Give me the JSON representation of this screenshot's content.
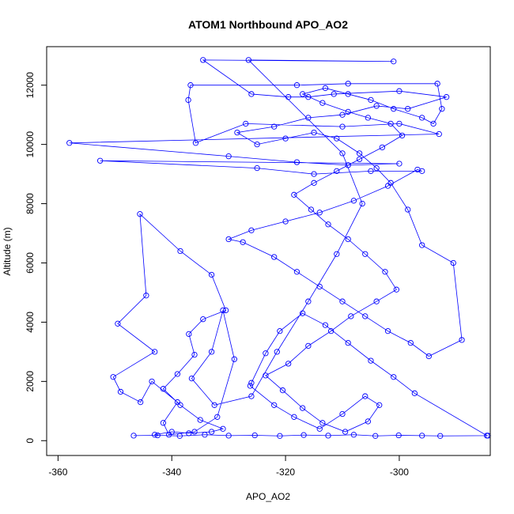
{
  "chart_data": {
    "type": "line",
    "title": "ATOM1 Northbound APO_AO2",
    "xlabel": "APO_AO2",
    "ylabel": "Altitude (m)",
    "xlim": [
      -362,
      -284
    ],
    "ylim": [
      -500,
      13300
    ],
    "xticks": [
      -360,
      -340,
      -320,
      -300
    ],
    "yticks": [
      0,
      2000,
      4000,
      6000,
      8000,
      10000,
      12000
    ],
    "grid": false,
    "marker": "open-circle",
    "series_color": "#0000ff",
    "series": [
      {
        "points": [
          [
            -346.7,
            170
          ],
          [
            -342.5,
            180
          ],
          [
            -338.6,
            160
          ],
          [
            -334.2,
            200
          ],
          [
            -330.0,
            170
          ],
          [
            -325.4,
            180
          ],
          [
            -321.0,
            160
          ],
          [
            -316.8,
            190
          ],
          [
            -312.5,
            170
          ],
          [
            -308.0,
            200
          ],
          [
            -304.2,
            160
          ],
          [
            -300.1,
            180
          ],
          [
            -296.0,
            170
          ],
          [
            -292.8,
            160
          ],
          [
            -284.4,
            170
          ],
          [
            -284.6,
            170
          ],
          [
            -297.3,
            1600
          ],
          [
            -301.0,
            2150
          ],
          [
            -305.0,
            2700
          ],
          [
            -309.0,
            3300
          ],
          [
            -313.0,
            3900
          ],
          [
            -317.0,
            4300
          ],
          [
            -321.0,
            3700
          ],
          [
            -323.5,
            2950
          ],
          [
            -326.0,
            1950
          ],
          [
            -326.2,
            1850
          ],
          [
            -322.0,
            1200
          ],
          [
            -318.5,
            800
          ],
          [
            -314.0,
            400
          ],
          [
            -310.0,
            900
          ],
          [
            -306.0,
            1500
          ],
          [
            -303.5,
            1200
          ],
          [
            -305.5,
            650
          ],
          [
            -309.5,
            300
          ],
          [
            -313.5,
            600
          ],
          [
            -317.0,
            1100
          ],
          [
            -320.5,
            1700
          ],
          [
            -323.5,
            2200
          ],
          [
            -319.5,
            2600
          ],
          [
            -316.0,
            3200
          ],
          [
            -312.0,
            3700
          ],
          [
            -308.5,
            4200
          ],
          [
            -304.0,
            4700
          ],
          [
            -300.5,
            5100
          ],
          [
            -302.5,
            5700
          ],
          [
            -306.0,
            6300
          ],
          [
            -309.0,
            6800
          ],
          [
            -312.5,
            7300
          ],
          [
            -315.5,
            7800
          ],
          [
            -318.5,
            8300
          ],
          [
            -315.0,
            8700
          ],
          [
            -311.0,
            9100
          ],
          [
            -307.0,
            9500
          ],
          [
            -303.0,
            9900
          ],
          [
            -299.5,
            10300
          ],
          [
            -301.5,
            10700
          ],
          [
            -305.5,
            10900
          ],
          [
            -309.0,
            11100
          ],
          [
            -313.5,
            11400
          ],
          [
            -317.0,
            11700
          ],
          [
            -313.0,
            11900
          ],
          [
            -309.0,
            11700
          ],
          [
            -305.0,
            11500
          ],
          [
            -301.0,
            11200
          ],
          [
            -296.0,
            10900
          ],
          [
            -294.0,
            10700
          ],
          [
            -292.5,
            11200
          ],
          [
            -293.3,
            12050
          ],
          [
            -309.0,
            12050
          ],
          [
            -318.0,
            12000
          ],
          [
            -336.7,
            12000
          ],
          [
            -337.1,
            11500
          ],
          [
            -335.8,
            10050
          ],
          [
            -327.0,
            10700
          ],
          [
            -310.0,
            10600
          ],
          [
            -300.0,
            10700
          ],
          [
            -293.0,
            10350
          ],
          [
            -358.0,
            10050
          ],
          [
            -330.0,
            9600
          ],
          [
            -318.0,
            9400
          ],
          [
            -309.0,
            9300
          ],
          [
            -300.0,
            9350
          ],
          [
            -352.6,
            9450
          ],
          [
            -325.0,
            9200
          ],
          [
            -315.0,
            9000
          ],
          [
            -305.0,
            9100
          ],
          [
            -296.0,
            9100
          ],
          [
            -296.8,
            9150
          ],
          [
            -302.0,
            8600
          ],
          [
            -308.0,
            8100
          ],
          [
            -314.0,
            7700
          ],
          [
            -320.0,
            7400
          ],
          [
            -326.0,
            7100
          ],
          [
            -330.0,
            6800
          ],
          [
            -327.5,
            6700
          ],
          [
            -322.0,
            6200
          ],
          [
            -318.0,
            5700
          ],
          [
            -314.0,
            5200
          ],
          [
            -310.0,
            4700
          ],
          [
            -306.0,
            4200
          ],
          [
            -302.0,
            3700
          ],
          [
            -298.0,
            3300
          ],
          [
            -294.8,
            2850
          ],
          [
            -289.0,
            3400
          ],
          [
            -290.5,
            6000
          ],
          [
            -296.0,
            6600
          ],
          [
            -298.5,
            7800
          ],
          [
            -301.5,
            8700
          ],
          [
            -304.0,
            9200
          ],
          [
            -307.0,
            9700
          ],
          [
            -311.0,
            10200
          ],
          [
            -315.0,
            10400
          ],
          [
            -320.0,
            10200
          ],
          [
            -325.0,
            10000
          ],
          [
            -328.5,
            10400
          ],
          [
            -322.0,
            10600
          ],
          [
            -316.0,
            10900
          ],
          [
            -310.0,
            11000
          ],
          [
            -304.0,
            11300
          ],
          [
            -298.5,
            11200
          ],
          [
            -291.7,
            11600
          ],
          [
            -300.0,
            11800
          ],
          [
            -311.5,
            11700
          ],
          [
            -316.0,
            11600
          ],
          [
            -319.5,
            11600
          ],
          [
            -326.0,
            11700
          ],
          [
            -334.5,
            12850
          ],
          [
            -301.0,
            12800
          ],
          [
            -326.5,
            12850
          ],
          [
            -310.0,
            9700
          ],
          [
            -306.5,
            8000
          ],
          [
            -311.0,
            6300
          ],
          [
            -316.0,
            4700
          ],
          [
            -321.5,
            3000
          ],
          [
            -326.0,
            1500
          ],
          [
            -332.5,
            1200
          ],
          [
            -336.5,
            2100
          ],
          [
            -333.0,
            3000
          ],
          [
            -331.0,
            4400
          ],
          [
            -329.0,
            2750
          ],
          [
            -332.0,
            800
          ],
          [
            -336.0,
            300
          ],
          [
            -340.5,
            200
          ],
          [
            -341.5,
            600
          ],
          [
            -339.0,
            1300
          ],
          [
            -343.5,
            2000
          ],
          [
            -345.5,
            1300
          ],
          [
            -349.0,
            1650
          ],
          [
            -350.3,
            2150
          ],
          [
            -343.0,
            3000
          ],
          [
            -349.5,
            3950
          ],
          [
            -344.5,
            4900
          ],
          [
            -345.6,
            7650
          ],
          [
            -338.5,
            6400
          ],
          [
            -333.0,
            5600
          ],
          [
            -330.5,
            4400
          ],
          [
            -334.5,
            4100
          ],
          [
            -337.0,
            3600
          ],
          [
            -336.0,
            2900
          ],
          [
            -339.0,
            2250
          ],
          [
            -341.5,
            1750
          ],
          [
            -338.5,
            1200
          ],
          [
            -335.0,
            700
          ],
          [
            -331.0,
            400
          ],
          [
            -333.0,
            300
          ],
          [
            -337.0,
            250
          ],
          [
            -340.0,
            300
          ],
          [
            -343.0,
            200
          ]
        ]
      }
    ]
  }
}
